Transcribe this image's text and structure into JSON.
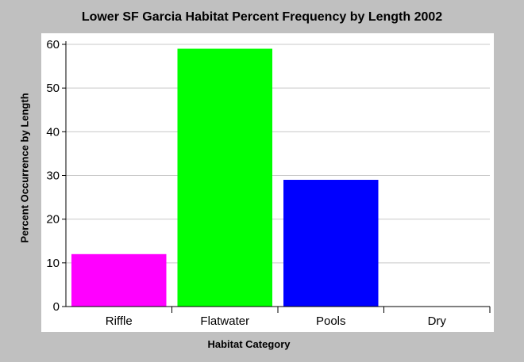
{
  "chart_data": {
    "type": "bar",
    "title": "Lower SF Garcia Habitat Percent Frequency by Length 2002",
    "xlabel": "Habitat Category",
    "ylabel": "Percent Occurrence by Length",
    "categories": [
      "Riffle",
      "Flatwater",
      "Pools",
      "Dry"
    ],
    "values": [
      12,
      59,
      29,
      0
    ],
    "colors": [
      "#ff00ff",
      "#00ff00",
      "#0000ff",
      "#ffffff"
    ],
    "ylim": [
      0,
      60
    ],
    "yticks": [
      0,
      10,
      20,
      30,
      40,
      50,
      60
    ],
    "grid": true,
    "legend": "none"
  }
}
